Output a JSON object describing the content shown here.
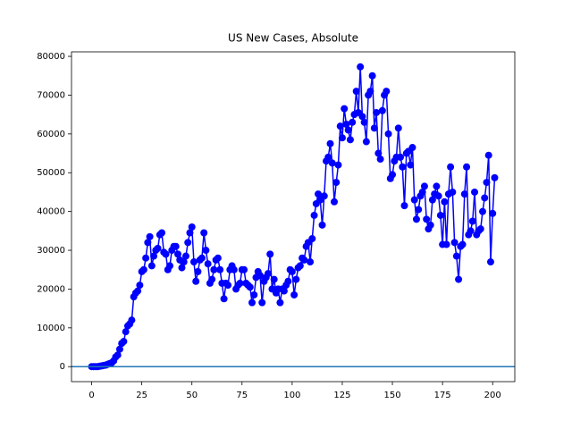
{
  "chart_data": {
    "type": "line",
    "title": "US New Cases, Absolute",
    "color": "#0000ff",
    "markers": true,
    "axhline": 0,
    "axhline_color": "#1f77b4",
    "xlim": [
      -10.05,
      211.05
    ],
    "xticks": [
      0,
      25,
      50,
      75,
      100,
      125,
      150,
      175,
      200
    ],
    "ylim": [
      -3865,
      81165
    ],
    "yticks": [
      0,
      10000,
      20000,
      30000,
      40000,
      50000,
      60000,
      70000,
      80000
    ],
    "x": [
      0,
      1,
      2,
      3,
      4,
      5,
      6,
      7,
      8,
      9,
      10,
      11,
      12,
      13,
      14,
      15,
      16,
      17,
      18,
      19,
      20,
      21,
      22,
      23,
      24,
      25,
      26,
      27,
      28,
      29,
      30,
      31,
      32,
      33,
      34,
      35,
      36,
      37,
      38,
      39,
      40,
      41,
      42,
      43,
      44,
      45,
      46,
      47,
      48,
      49,
      50,
      51,
      52,
      53,
      54,
      55,
      56,
      57,
      58,
      59,
      60,
      61,
      62,
      63,
      64,
      65,
      66,
      67,
      68,
      69,
      70,
      71,
      72,
      73,
      74,
      75,
      76,
      77,
      78,
      79,
      80,
      81,
      82,
      83,
      84,
      85,
      86,
      87,
      88,
      89,
      90,
      91,
      92,
      93,
      94,
      95,
      96,
      97,
      98,
      99,
      100,
      101,
      102,
      103,
      104,
      105,
      106,
      107,
      108,
      109,
      110,
      111,
      112,
      113,
      114,
      115,
      116,
      117,
      118,
      119,
      120,
      121,
      122,
      123,
      124,
      125,
      126,
      127,
      128,
      129,
      130,
      131,
      132,
      133,
      134,
      135,
      136,
      137,
      138,
      139,
      140,
      141,
      142,
      143,
      144,
      145,
      146,
      147,
      148,
      149,
      150,
      151,
      152,
      153,
      154,
      155,
      156,
      157,
      158,
      159,
      160,
      161,
      162,
      163,
      164,
      165,
      166,
      167,
      168,
      169,
      170,
      171,
      172,
      173,
      174,
      175,
      176,
      177,
      178,
      179,
      180,
      181,
      182,
      183,
      184,
      185,
      186,
      187,
      188,
      189,
      190,
      191,
      192,
      193,
      194,
      195,
      196,
      197,
      198,
      199,
      200,
      201
    ],
    "values": [
      0,
      0,
      0,
      0,
      100,
      200,
      300,
      400,
      600,
      800,
      1000,
      1500,
      2500,
      3000,
      4500,
      6000,
      6500,
      9000,
      10500,
      11000,
      12000,
      18000,
      19000,
      19500,
      21000,
      24500,
      25000,
      28000,
      32000,
      33500,
      26000,
      28500,
      30000,
      30500,
      34000,
      34500,
      29500,
      29000,
      25000,
      26000,
      30000,
      31000,
      31000,
      29000,
      27500,
      25500,
      27000,
      28500,
      32000,
      34500,
      36000,
      27000,
      22000,
      24500,
      27500,
      28000,
      34500,
      30000,
      26500,
      21500,
      22500,
      25000,
      27500,
      28000,
      25000,
      21500,
      17500,
      21500,
      21000,
      25000,
      26000,
      25000,
      20000,
      21000,
      21500,
      25000,
      25000,
      21500,
      21000,
      20500,
      16500,
      18500,
      23000,
      24500,
      23500,
      16500,
      22000,
      23000,
      24000,
      29000,
      20000,
      22500,
      19000,
      20000,
      16500,
      20000,
      19500,
      21000,
      22000,
      25000,
      24500,
      18500,
      22500,
      25500,
      26000,
      28000,
      27500,
      31000,
      32000,
      27000,
      33000,
      39000,
      42000,
      44500,
      43000,
      36500,
      44000,
      53000,
      54000,
      57500,
      52500,
      42500,
      47500,
      52000,
      62000,
      59000,
      66500,
      62500,
      61000,
      58500,
      63000,
      65000,
      71000,
      65500,
      77300,
      64500,
      63000,
      58000,
      70000,
      71000,
      75000,
      61500,
      65500,
      55000,
      53500,
      66000,
      70000,
      71000,
      60000,
      48500,
      49500,
      53000,
      54000,
      61500,
      54000,
      51500,
      41500,
      55000,
      55500,
      52000,
      56500,
      43000,
      38000,
      40500,
      44000,
      45000,
      46500,
      38000,
      35500,
      36500,
      43000,
      44500,
      46500,
      44000,
      39000,
      31500,
      42500,
      31500,
      44500,
      51500,
      45000,
      32000,
      28500,
      22500,
      31000,
      31500,
      44500,
      51500,
      34000,
      35000,
      37500,
      45000,
      34000,
      35000,
      35500,
      40000,
      43500,
      47500,
      54500,
      27000,
      39500,
      48700
    ]
  }
}
